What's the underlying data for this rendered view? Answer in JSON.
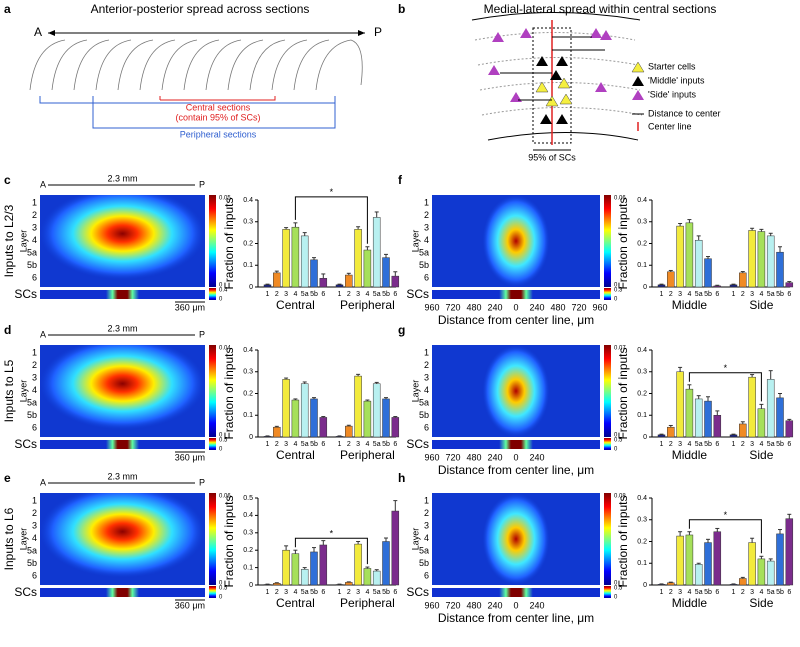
{
  "figure": {
    "a": {
      "label": "a",
      "title": "Anterior-posterior spread across sections",
      "A": "A",
      "P": "P",
      "central": "Central sections",
      "central_note": "(contain 95% of SCs)",
      "peripheral": "Peripheral sections"
    },
    "b": {
      "label": "b",
      "title": "Medial-lateral spread within central sections",
      "legend": [
        "Starter cells",
        "'Middle' inputs",
        "'Side' inputs",
        "Distance to center",
        "Center line"
      ],
      "sc_span": "95% of SCs"
    },
    "heatmaps": [
      {
        "label": "c",
        "ylabel": "Inputs to L2/3",
        "layer_title": "Layer",
        "layers": [
          "1",
          "2",
          "3",
          "4",
          "5a",
          "5b",
          "6"
        ],
        "sc_label": "SCs",
        "A": "A",
        "P": "P",
        "span": "2.3 mm",
        "scale": "360 μm",
        "colorbar": [
          0,
          0.05
        ],
        "sc_colorbar": [
          0,
          0.4
        ]
      },
      {
        "label": "d",
        "ylabel": "Inputs to L5",
        "layer_title": "Layer",
        "layers": [
          "1",
          "2",
          "3",
          "4",
          "5a",
          "5b",
          "6"
        ],
        "sc_label": "SCs",
        "A": "A",
        "P": "P",
        "span": "2.3 mm",
        "scale": "360 μm",
        "colorbar": [
          0,
          0.04
        ],
        "sc_colorbar": [
          0,
          0.5
        ]
      },
      {
        "label": "e",
        "ylabel": "Inputs to L6",
        "layer_title": "Layer",
        "layers": [
          "1",
          "2",
          "3",
          "4",
          "5a",
          "5b",
          "6"
        ],
        "sc_label": "SCs",
        "A": "A",
        "P": "P",
        "span": "2.3 mm",
        "scale": "360 μm",
        "colorbar": [
          0,
          0.06
        ],
        "sc_colorbar": [
          0,
          0.5
        ]
      },
      {
        "label": "f",
        "layer_title": "Layer",
        "layers": [
          "1",
          "2",
          "3",
          "4",
          "5a",
          "5b",
          "6"
        ],
        "sc_label": "SCs",
        "colorbar": [
          0,
          0.06
        ],
        "sc_colorbar": [
          0,
          0.3
        ],
        "xticks": [
          "960",
          "720",
          "480",
          "240",
          "0",
          "240",
          "480",
          "720",
          "960"
        ],
        "xlabel": "Distance from center line, μm"
      },
      {
        "label": "g",
        "layer_title": "Layer",
        "layers": [
          "1",
          "2",
          "3",
          "4",
          "5a",
          "5b",
          "6"
        ],
        "sc_label": "SCs",
        "colorbar": [
          0,
          0.07
        ],
        "sc_colorbar": [
          0,
          0.5
        ],
        "xticks": [
          "960",
          "720",
          "480",
          "240",
          "0",
          "240"
        ],
        "xlabel": "Distance from center line, μm"
      },
      {
        "label": "h",
        "layer_title": "Layer",
        "layers": [
          "1",
          "2",
          "3",
          "4",
          "5a",
          "5b",
          "6"
        ],
        "sc_label": "SCs",
        "colorbar": [
          0,
          0.08
        ],
        "sc_colorbar": [
          0,
          0.5
        ],
        "xticks": [
          "960",
          "720",
          "480",
          "240",
          "0",
          "240"
        ],
        "xlabel": "Distance from center line, μm"
      }
    ]
  },
  "chart_data": [
    {
      "type": "bar",
      "ylabel": "Fraction of inputs",
      "layers": [
        "1",
        "2",
        "3",
        "4",
        "5a",
        "5b",
        "6"
      ],
      "colors": [
        "#1a237e",
        "#f08a24",
        "#f2ea3c",
        "#a6e05a",
        "#b8f0f0",
        "#2f6fd8",
        "#7b2c8c"
      ],
      "ylim": [
        0,
        0.4
      ],
      "yticks": [
        0,
        0.1,
        0.2,
        0.3,
        0.4
      ],
      "annotation": "*",
      "series": [
        {
          "name": "Central",
          "values": [
            0.01,
            0.065,
            0.265,
            0.275,
            0.235,
            0.125,
            0.04
          ],
          "errors": [
            0.003,
            0.008,
            0.008,
            0.02,
            0.015,
            0.01,
            0.02
          ]
        },
        {
          "name": "Peripheral",
          "values": [
            0.01,
            0.055,
            0.265,
            0.17,
            0.32,
            0.135,
            0.05
          ],
          "errors": [
            0.003,
            0.008,
            0.012,
            0.015,
            0.025,
            0.015,
            0.02
          ]
        }
      ]
    },
    {
      "type": "bar",
      "ylabel": "Fraction of inputs",
      "layers": [
        "1",
        "2",
        "3",
        "4",
        "5a",
        "5b",
        "6"
      ],
      "colors": [
        "#1a237e",
        "#f08a24",
        "#f2ea3c",
        "#a6e05a",
        "#b8f0f0",
        "#2f6fd8",
        "#7b2c8c"
      ],
      "ylim": [
        0,
        0.4
      ],
      "yticks": [
        0,
        0.1,
        0.2,
        0.3,
        0.4
      ],
      "series": [
        {
          "name": "Central",
          "values": [
            0.003,
            0.045,
            0.265,
            0.17,
            0.245,
            0.175,
            0.09
          ],
          "errors": [
            0.002,
            0.004,
            0.006,
            0.005,
            0.008,
            0.006,
            0.004
          ]
        },
        {
          "name": "Peripheral",
          "values": [
            0.003,
            0.05,
            0.28,
            0.165,
            0.245,
            0.175,
            0.09
          ],
          "errors": [
            0.002,
            0.004,
            0.008,
            0.005,
            0.006,
            0.006,
            0.004
          ]
        }
      ]
    },
    {
      "type": "bar",
      "ylabel": "Fraction of inputs",
      "layers": [
        "1",
        "2",
        "3",
        "4",
        "5a",
        "5b",
        "6"
      ],
      "colors": [
        "#1a237e",
        "#f08a24",
        "#f2ea3c",
        "#a6e05a",
        "#b8f0f0",
        "#2f6fd8",
        "#7b2c8c"
      ],
      "ylim": [
        0,
        0.5
      ],
      "yticks": [
        0,
        0.1,
        0.2,
        0.3,
        0.4,
        0.5
      ],
      "annotation": "*",
      "series": [
        {
          "name": "Central",
          "values": [
            0.003,
            0.01,
            0.2,
            0.18,
            0.09,
            0.19,
            0.23
          ],
          "errors": [
            0.002,
            0.003,
            0.025,
            0.02,
            0.01,
            0.025,
            0.025
          ]
        },
        {
          "name": "Peripheral",
          "values": [
            0.003,
            0.015,
            0.235,
            0.095,
            0.08,
            0.25,
            0.425
          ],
          "errors": [
            0.002,
            0.003,
            0.015,
            0.008,
            0.008,
            0.02,
            0.06
          ]
        }
      ]
    },
    {
      "type": "bar",
      "ylabel": "Fraction of inputs",
      "layers": [
        "1",
        "2",
        "3",
        "4",
        "5a",
        "5b",
        "6"
      ],
      "colors": [
        "#1a237e",
        "#f08a24",
        "#f2ea3c",
        "#a6e05a",
        "#b8f0f0",
        "#2f6fd8",
        "#7b2c8c"
      ],
      "ylim": [
        0,
        0.4
      ],
      "yticks": [
        0,
        0.1,
        0.2,
        0.3,
        0.4
      ],
      "series": [
        {
          "name": "Middle",
          "values": [
            0.01,
            0.07,
            0.28,
            0.295,
            0.215,
            0.13,
            0.005
          ],
          "errors": [
            0.003,
            0.006,
            0.012,
            0.015,
            0.02,
            0.01,
            0.003
          ]
        },
        {
          "name": "Side",
          "values": [
            0.01,
            0.065,
            0.26,
            0.255,
            0.235,
            0.16,
            0.02
          ],
          "errors": [
            0.003,
            0.006,
            0.01,
            0.01,
            0.012,
            0.025,
            0.005
          ]
        }
      ]
    },
    {
      "type": "bar",
      "ylabel": "Fraction of inputs",
      "layers": [
        "1",
        "2",
        "3",
        "4",
        "5a",
        "5b",
        "6"
      ],
      "colors": [
        "#1a237e",
        "#f08a24",
        "#f2ea3c",
        "#a6e05a",
        "#b8f0f0",
        "#2f6fd8",
        "#7b2c8c"
      ],
      "ylim": [
        0,
        0.4
      ],
      "yticks": [
        0,
        0.1,
        0.2,
        0.3,
        0.4
      ],
      "annotation": "*",
      "series": [
        {
          "name": "Middle",
          "values": [
            0.01,
            0.045,
            0.3,
            0.22,
            0.175,
            0.165,
            0.1
          ],
          "errors": [
            0.003,
            0.008,
            0.02,
            0.02,
            0.015,
            0.02,
            0.02
          ]
        },
        {
          "name": "Side",
          "values": [
            0.01,
            0.06,
            0.275,
            0.13,
            0.265,
            0.18,
            0.075
          ],
          "errors": [
            0.003,
            0.01,
            0.012,
            0.02,
            0.04,
            0.02,
            0.006
          ]
        }
      ]
    },
    {
      "type": "bar",
      "ylabel": "Fraction of inputs",
      "layers": [
        "1",
        "2",
        "3",
        "4",
        "5a",
        "5b",
        "6"
      ],
      "colors": [
        "#1a237e",
        "#f08a24",
        "#f2ea3c",
        "#a6e05a",
        "#b8f0f0",
        "#2f6fd8",
        "#7b2c8c"
      ],
      "ylim": [
        0,
        0.4
      ],
      "yticks": [
        0,
        0.1,
        0.2,
        0.3,
        0.4
      ],
      "annotation": "*",
      "series": [
        {
          "name": "Middle",
          "values": [
            0.003,
            0.01,
            0.225,
            0.23,
            0.095,
            0.195,
            0.245
          ],
          "errors": [
            0.002,
            0.003,
            0.02,
            0.015,
            0.005,
            0.015,
            0.015
          ]
        },
        {
          "name": "Side",
          "values": [
            0.003,
            0.03,
            0.195,
            0.12,
            0.11,
            0.235,
            0.305
          ],
          "errors": [
            0.002,
            0.005,
            0.02,
            0.012,
            0.01,
            0.02,
            0.02
          ]
        }
      ]
    }
  ]
}
